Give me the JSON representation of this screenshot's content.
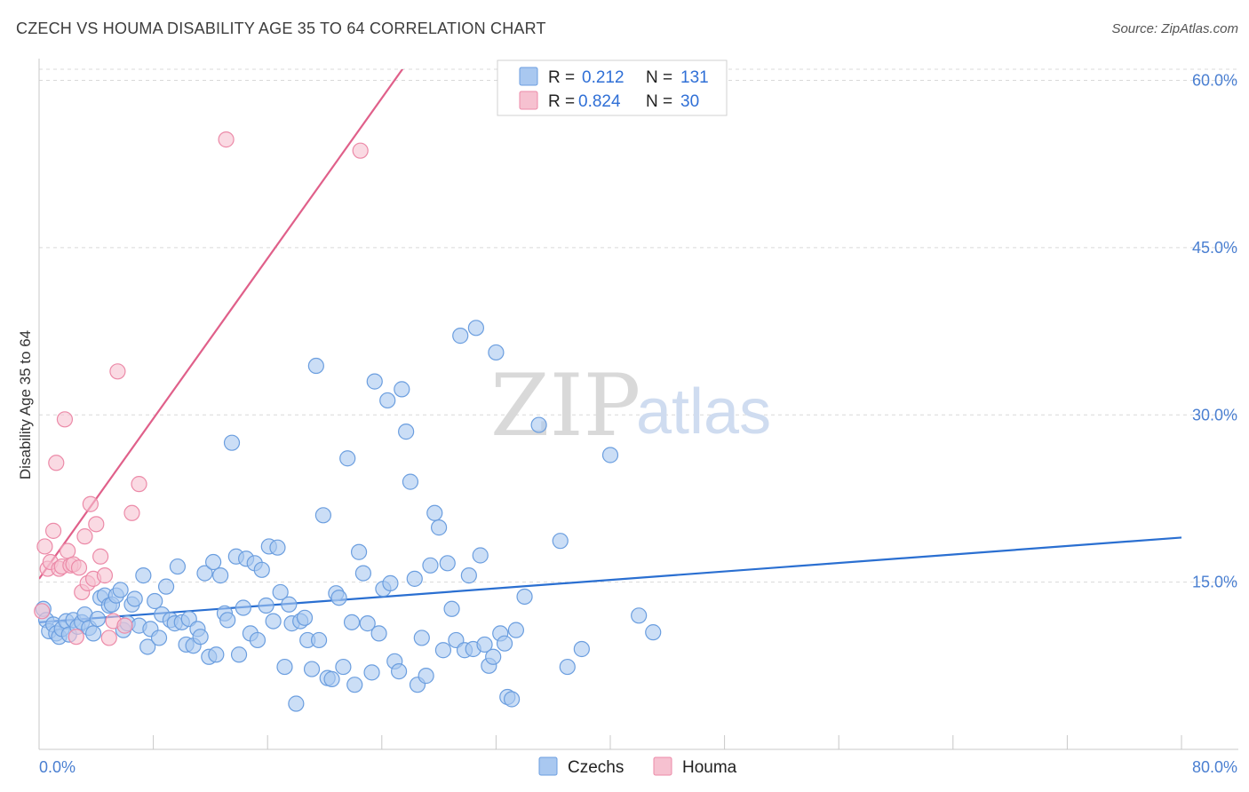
{
  "header": {
    "title": "CZECH VS HOUMA DISABILITY AGE 35 TO 64 CORRELATION CHART",
    "source": "Source: ZipAtlas.com"
  },
  "watermark": {
    "zip": "ZIP",
    "atlas": "atlas"
  },
  "colors": {
    "czech_fill": "#a9c8f0",
    "czech_stroke": "#6b9edf",
    "czech_line": "#2a6fd1",
    "houma_fill": "#f6c1d0",
    "houma_stroke": "#ec8aa8",
    "houma_line": "#e0608a",
    "tick_text": "#4a7fd1",
    "grid": "#d9d9d9"
  },
  "legend_box": {
    "rows": [
      {
        "r_label": "R =",
        "r_value": "0.212",
        "n_label": "N =",
        "n_value": "131"
      },
      {
        "r_label": "R =",
        "r_value": "0.824",
        "n_label": "N =",
        "n_value": "30"
      }
    ]
  },
  "chart_data": {
    "type": "scatter",
    "title": "CZECH VS HOUMA DISABILITY AGE 35 TO 64 CORRELATION CHART",
    "ylabel": "Disability Age 35 to 64",
    "xlabel": "",
    "xlim": [
      0,
      80
    ],
    "ylim": [
      0,
      61
    ],
    "x_tick_labels": [
      "0.0%",
      "80.0%"
    ],
    "y_ticks": [
      15,
      30,
      45,
      60
    ],
    "y_tick_labels": [
      "15.0%",
      "30.0%",
      "45.0%",
      "60.0%"
    ],
    "grid": true,
    "legend_position": "bottom",
    "series": [
      {
        "name": "Czechs",
        "r": 0.212,
        "n": 131,
        "trend": {
          "x": [
            0,
            80
          ],
          "y": [
            11.4,
            19.0
          ]
        },
        "points": [
          [
            0.3,
            12.6
          ],
          [
            0.5,
            11.6
          ],
          [
            0.7,
            10.6
          ],
          [
            1.0,
            11.2
          ],
          [
            1.2,
            10.4
          ],
          [
            1.4,
            10.1
          ],
          [
            1.6,
            10.8
          ],
          [
            1.9,
            11.5
          ],
          [
            2.1,
            10.3
          ],
          [
            2.4,
            11.6
          ],
          [
            2.7,
            11.0
          ],
          [
            3.0,
            11.4
          ],
          [
            3.2,
            12.1
          ],
          [
            3.5,
            10.9
          ],
          [
            3.8,
            10.4
          ],
          [
            4.1,
            11.7
          ],
          [
            4.3,
            13.6
          ],
          [
            4.6,
            13.8
          ],
          [
            4.9,
            12.9
          ],
          [
            5.1,
            13.0
          ],
          [
            5.4,
            13.8
          ],
          [
            5.7,
            14.3
          ],
          [
            5.9,
            10.7
          ],
          [
            6.2,
            11.3
          ],
          [
            6.5,
            13.0
          ],
          [
            6.7,
            13.5
          ],
          [
            7.0,
            11.1
          ],
          [
            7.3,
            15.6
          ],
          [
            7.6,
            9.2
          ],
          [
            7.8,
            10.8
          ],
          [
            8.1,
            13.3
          ],
          [
            8.4,
            10.0
          ],
          [
            8.6,
            12.1
          ],
          [
            8.9,
            14.6
          ],
          [
            9.2,
            11.6
          ],
          [
            9.5,
            11.3
          ],
          [
            9.7,
            16.4
          ],
          [
            10.0,
            11.4
          ],
          [
            10.3,
            9.4
          ],
          [
            10.5,
            11.7
          ],
          [
            10.8,
            9.3
          ],
          [
            11.1,
            10.8
          ],
          [
            11.3,
            10.1
          ],
          [
            11.6,
            15.8
          ],
          [
            11.9,
            8.3
          ],
          [
            12.2,
            16.8
          ],
          [
            12.4,
            8.5
          ],
          [
            12.7,
            15.6
          ],
          [
            13.0,
            12.2
          ],
          [
            13.2,
            11.6
          ],
          [
            13.5,
            27.5
          ],
          [
            13.8,
            17.3
          ],
          [
            14.0,
            8.5
          ],
          [
            14.3,
            12.7
          ],
          [
            14.5,
            17.1
          ],
          [
            14.8,
            10.4
          ],
          [
            15.1,
            16.7
          ],
          [
            15.3,
            9.8
          ],
          [
            15.6,
            16.1
          ],
          [
            15.9,
            12.9
          ],
          [
            16.1,
            18.2
          ],
          [
            16.4,
            11.5
          ],
          [
            16.7,
            18.1
          ],
          [
            16.9,
            14.1
          ],
          [
            17.2,
            7.4
          ],
          [
            17.5,
            13.0
          ],
          [
            17.7,
            11.3
          ],
          [
            18.0,
            4.1
          ],
          [
            18.3,
            11.5
          ],
          [
            18.6,
            11.8
          ],
          [
            18.8,
            9.8
          ],
          [
            19.1,
            7.2
          ],
          [
            19.4,
            34.4
          ],
          [
            19.6,
            9.8
          ],
          [
            19.9,
            21.0
          ],
          [
            20.2,
            6.4
          ],
          [
            20.5,
            6.3
          ],
          [
            20.8,
            14.0
          ],
          [
            21.0,
            13.6
          ],
          [
            21.3,
            7.4
          ],
          [
            21.6,
            26.1
          ],
          [
            21.9,
            11.4
          ],
          [
            22.1,
            5.8
          ],
          [
            22.4,
            17.7
          ],
          [
            22.7,
            15.8
          ],
          [
            23.0,
            11.3
          ],
          [
            23.3,
            6.9
          ],
          [
            23.5,
            33.0
          ],
          [
            23.8,
            10.4
          ],
          [
            24.1,
            14.4
          ],
          [
            24.4,
            31.3
          ],
          [
            24.6,
            14.9
          ],
          [
            24.9,
            7.9
          ],
          [
            25.2,
            7.0
          ],
          [
            25.4,
            32.3
          ],
          [
            25.7,
            28.5
          ],
          [
            26.0,
            24.0
          ],
          [
            26.3,
            15.3
          ],
          [
            26.5,
            5.8
          ],
          [
            26.8,
            10.0
          ],
          [
            27.1,
            6.6
          ],
          [
            27.4,
            16.5
          ],
          [
            27.7,
            21.2
          ],
          [
            28.0,
            19.9
          ],
          [
            28.3,
            8.9
          ],
          [
            28.6,
            16.7
          ],
          [
            28.9,
            12.6
          ],
          [
            29.2,
            9.8
          ],
          [
            29.5,
            37.1
          ],
          [
            29.8,
            8.9
          ],
          [
            30.1,
            15.6
          ],
          [
            30.4,
            9.0
          ],
          [
            30.6,
            37.8
          ],
          [
            30.9,
            17.4
          ],
          [
            31.2,
            9.4
          ],
          [
            31.5,
            7.5
          ],
          [
            31.8,
            8.3
          ],
          [
            32.0,
            35.6
          ],
          [
            32.3,
            10.4
          ],
          [
            32.6,
            9.5
          ],
          [
            32.8,
            4.7
          ],
          [
            33.1,
            4.5
          ],
          [
            33.4,
            10.7
          ],
          [
            34.0,
            13.7
          ],
          [
            35.0,
            29.1
          ],
          [
            36.5,
            18.7
          ],
          [
            37.0,
            7.4
          ],
          [
            38.0,
            9.0
          ],
          [
            40.0,
            26.4
          ],
          [
            42.0,
            12.0
          ],
          [
            43.0,
            10.5
          ]
        ]
      },
      {
        "name": "Houma",
        "r": 0.824,
        "n": 30,
        "trend": {
          "x": [
            0,
            80
          ],
          "y": [
            15.3,
            159.0
          ]
        },
        "points": [
          [
            0.2,
            12.4
          ],
          [
            0.4,
            18.2
          ],
          [
            0.6,
            16.2
          ],
          [
            0.8,
            16.8
          ],
          [
            1.0,
            19.6
          ],
          [
            1.2,
            25.7
          ],
          [
            1.4,
            16.2
          ],
          [
            1.6,
            16.4
          ],
          [
            1.8,
            29.6
          ],
          [
            2.0,
            17.8
          ],
          [
            2.2,
            16.5
          ],
          [
            2.4,
            16.6
          ],
          [
            2.6,
            10.1
          ],
          [
            2.8,
            16.3
          ],
          [
            3.0,
            14.1
          ],
          [
            3.2,
            19.1
          ],
          [
            3.4,
            14.9
          ],
          [
            3.6,
            22.0
          ],
          [
            3.8,
            15.3
          ],
          [
            4.0,
            20.2
          ],
          [
            4.3,
            17.3
          ],
          [
            4.6,
            15.6
          ],
          [
            4.9,
            10.0
          ],
          [
            5.2,
            11.5
          ],
          [
            5.5,
            33.9
          ],
          [
            6.0,
            11.1
          ],
          [
            6.5,
            21.2
          ],
          [
            7.0,
            23.8
          ],
          [
            13.1,
            54.7
          ],
          [
            22.5,
            53.7
          ]
        ]
      }
    ]
  },
  "bottom_legend": {
    "items": [
      "Czechs",
      "Houma"
    ]
  }
}
